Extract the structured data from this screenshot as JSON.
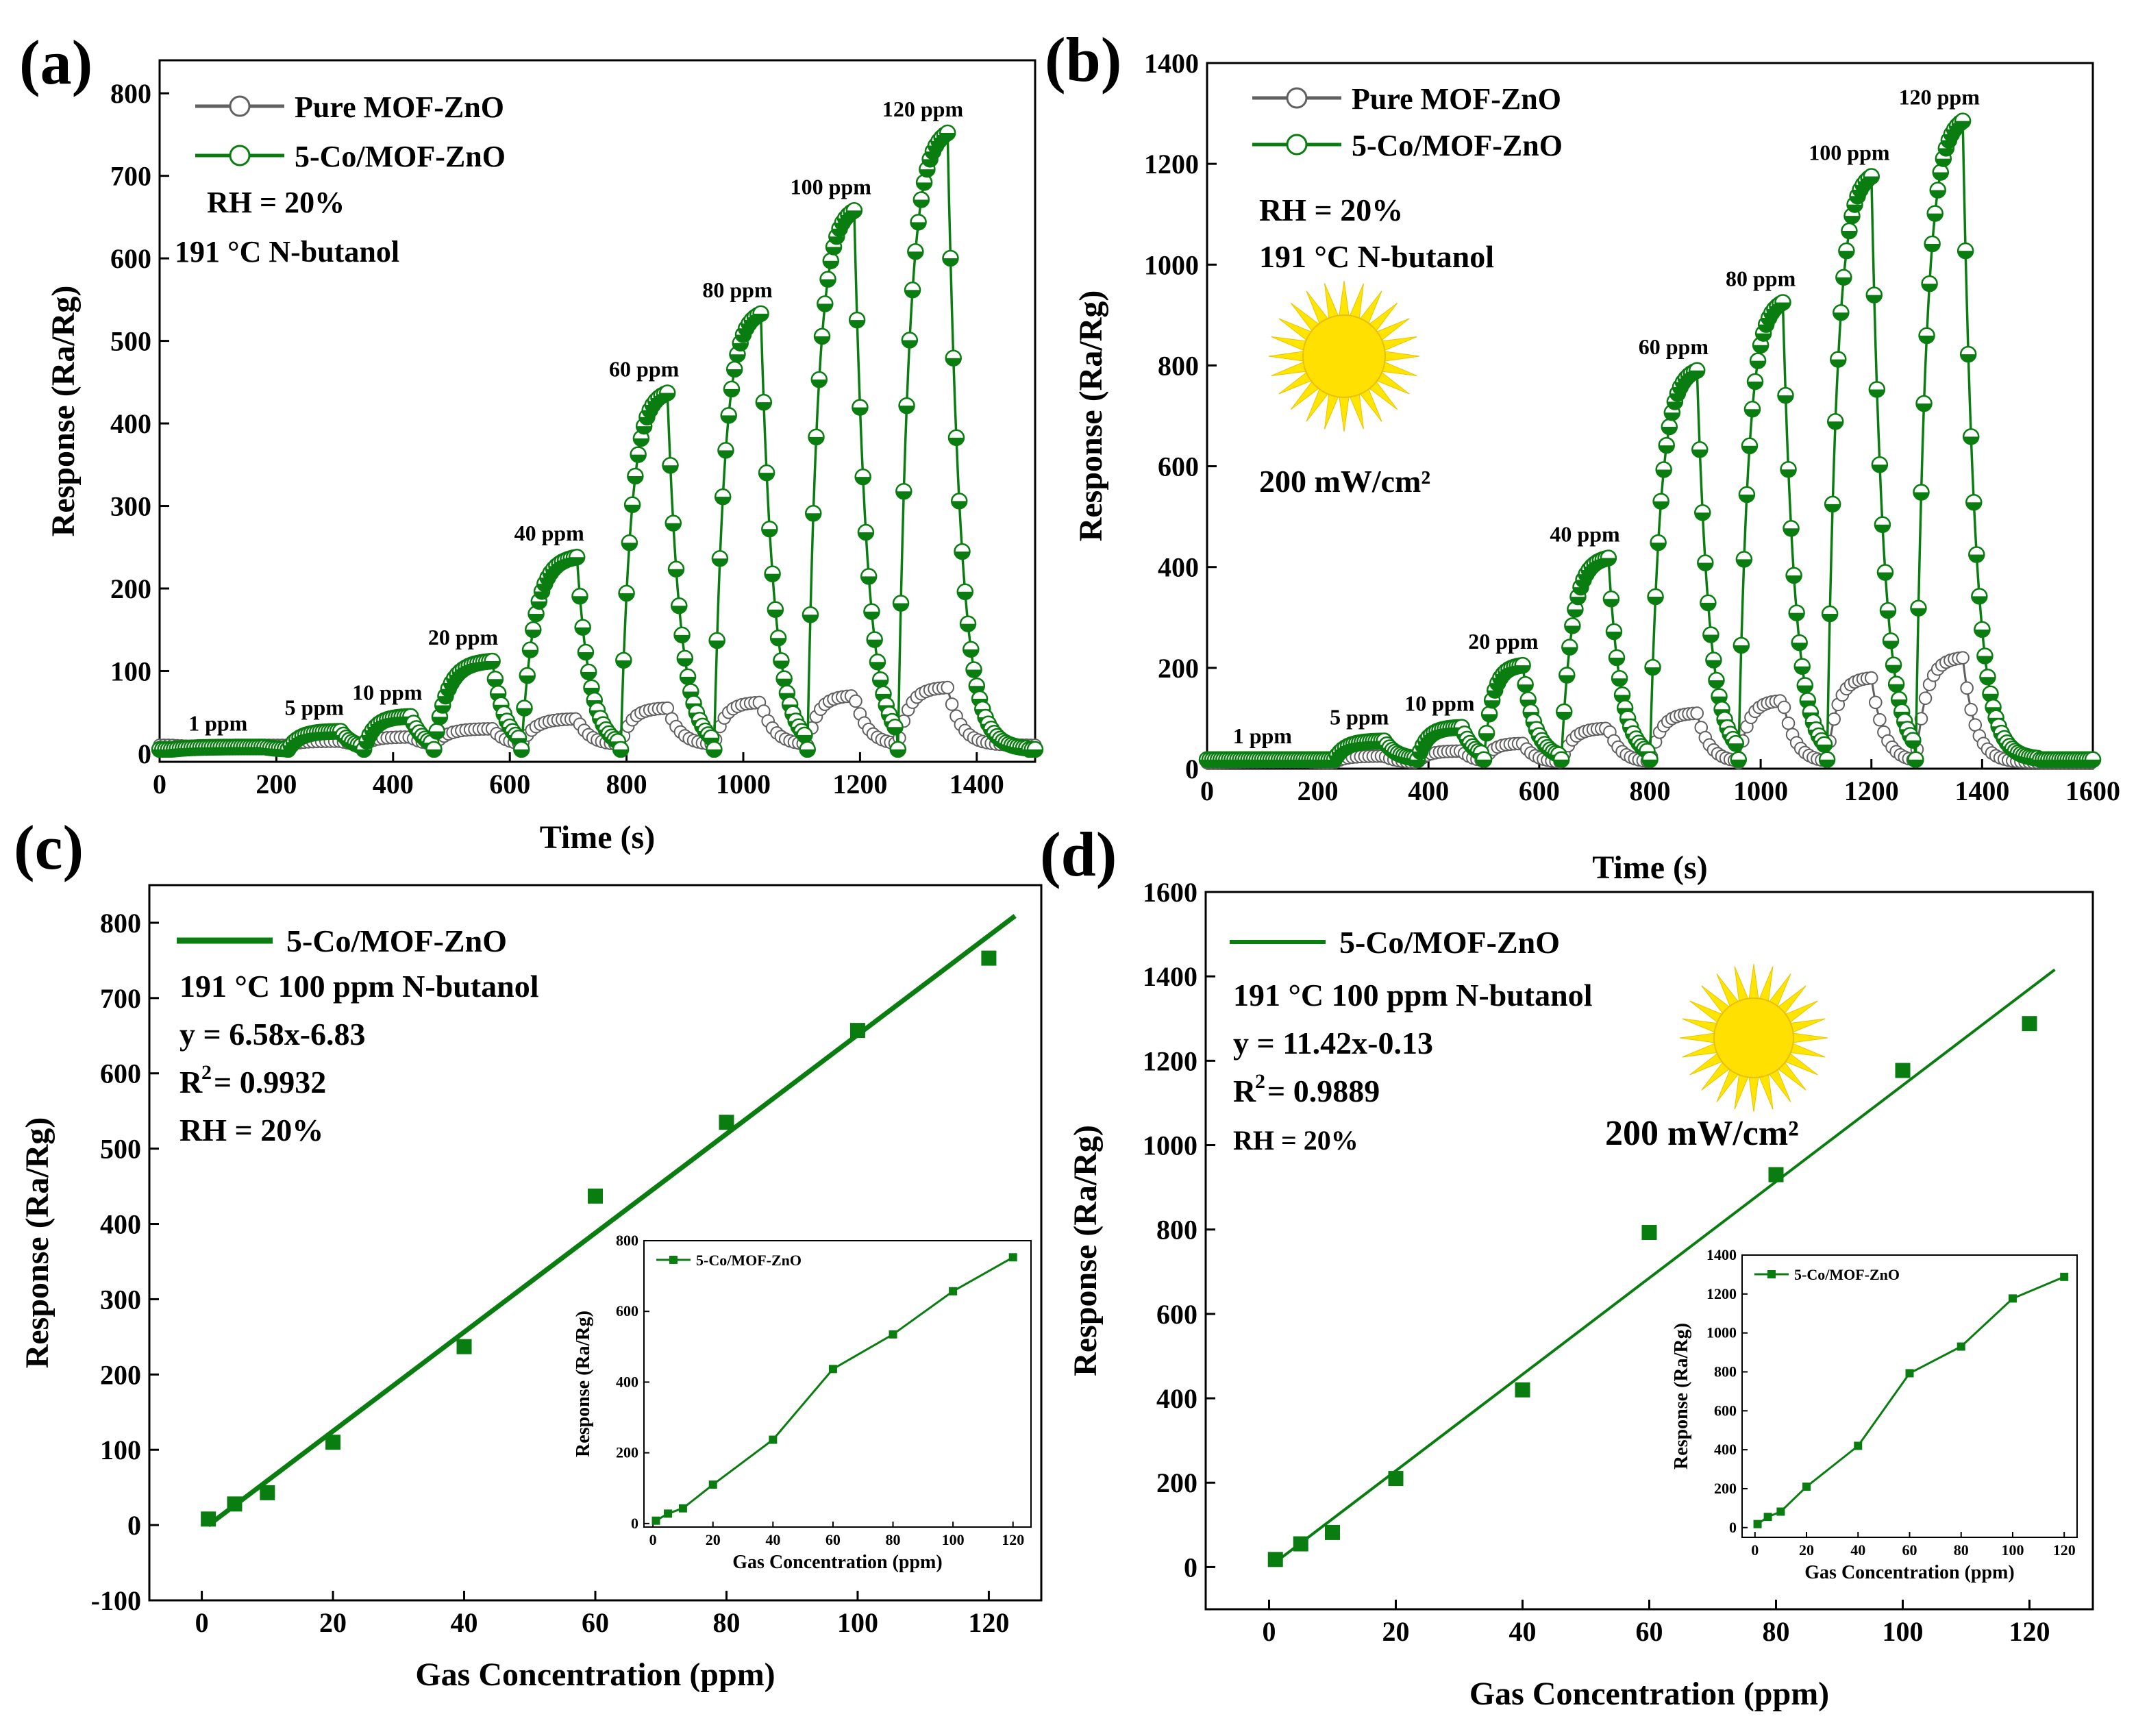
{
  "chart_data": [
    {
      "panel": "a",
      "panel_label": "(a)",
      "type": "line",
      "xlabel": "Time (s)",
      "ylabel": "Response (Ra/Rg)",
      "xlim": [
        0,
        1500
      ],
      "ylim": [
        -10,
        840
      ],
      "xticks": [
        0,
        200,
        400,
        600,
        800,
        1000,
        1200,
        1400
      ],
      "yticks": [
        0,
        100,
        200,
        300,
        400,
        500,
        600,
        700,
        800
      ],
      "legend": [
        "Pure MOF-ZnO",
        "5-Co/MOF-ZnO"
      ],
      "annotations": [
        "RH = 20%",
        "191 °C N-butanol"
      ],
      "baseline": {
        "pure": 10,
        "doped": 5
      },
      "pulses": [
        {
          "label": "1 ppm",
          "start": 20,
          "end": 180,
          "peak_doped": 8,
          "peak_pure": 8
        },
        {
          "label": "5 ppm",
          "start": 220,
          "end": 310,
          "peak_doped": 27,
          "peak_pure": 15
        },
        {
          "label": "10 ppm",
          "start": 350,
          "end": 430,
          "peak_doped": 45,
          "peak_pure": 20
        },
        {
          "label": "20 ppm",
          "start": 470,
          "end": 570,
          "peak_doped": 112,
          "peak_pure": 30
        },
        {
          "label": "40 ppm",
          "start": 620,
          "end": 715,
          "peak_doped": 238,
          "peak_pure": 42
        },
        {
          "label": "60 ppm",
          "start": 790,
          "end": 870,
          "peak_doped": 437,
          "peak_pure": 55
        },
        {
          "label": "80 ppm",
          "start": 950,
          "end": 1030,
          "peak_doped": 533,
          "peak_pure": 62
        },
        {
          "label": "100 ppm",
          "start": 1110,
          "end": 1190,
          "peak_doped": 658,
          "peak_pure": 70
        },
        {
          "label": "120 ppm",
          "start": 1265,
          "end": 1350,
          "peak_doped": 752,
          "peak_pure": 80
        }
      ]
    },
    {
      "panel": "b",
      "panel_label": "(b)",
      "type": "line",
      "xlabel": "Time (s)",
      "ylabel": "Response (Ra/Rg)",
      "xlim": [
        0,
        1600
      ],
      "ylim": [
        0,
        1400
      ],
      "xticks": [
        0,
        200,
        400,
        600,
        800,
        1000,
        1200,
        1400,
        1600
      ],
      "yticks": [
        0,
        200,
        400,
        600,
        800,
        1000,
        1200,
        1400
      ],
      "legend": [
        "Pure MOF-ZnO",
        "5-Co/MOF-ZnO"
      ],
      "annotations": [
        "RH = 20%",
        "191 °C N-butanol",
        "200 mW/cm²"
      ],
      "baseline": {
        "pure": 12,
        "doped": 18
      },
      "pulses": [
        {
          "label": "1 ppm",
          "start": 20,
          "end": 180,
          "peak_doped": 18,
          "peak_pure": 14
        },
        {
          "label": "5 ppm",
          "start": 230,
          "end": 320,
          "peak_doped": 55,
          "peak_pure": 25
        },
        {
          "label": "10 ppm",
          "start": 380,
          "end": 460,
          "peak_doped": 82,
          "peak_pure": 35
        },
        {
          "label": "20 ppm",
          "start": 500,
          "end": 570,
          "peak_doped": 205,
          "peak_pure": 50
        },
        {
          "label": "40 ppm",
          "start": 640,
          "end": 725,
          "peak_doped": 418,
          "peak_pure": 80
        },
        {
          "label": "60 ppm",
          "start": 800,
          "end": 885,
          "peak_doped": 790,
          "peak_pure": 110
        },
        {
          "label": "80 ppm",
          "start": 960,
          "end": 1040,
          "peak_doped": 925,
          "peak_pure": 135
        },
        {
          "label": "100 ppm",
          "start": 1120,
          "end": 1200,
          "peak_doped": 1175,
          "peak_pure": 180
        },
        {
          "label": "120 ppm",
          "start": 1280,
          "end": 1365,
          "peak_doped": 1285,
          "peak_pure": 220
        }
      ]
    },
    {
      "panel": "c",
      "panel_label": "(c)",
      "type": "scatter",
      "xlabel": "Gas Concentration (ppm)",
      "ylabel": "Response (Ra/Rg)",
      "xlim": [
        -8,
        128
      ],
      "ylim": [
        -100,
        850
      ],
      "xticks": [
        0,
        20,
        40,
        60,
        80,
        100,
        120
      ],
      "yticks": [
        -100,
        0,
        100,
        200,
        300,
        400,
        500,
        600,
        700,
        800
      ],
      "legend": [
        "5-Co/MOF-ZnO"
      ],
      "annotations": [
        "191 °C 100 ppm N-butanol",
        "y = 6.58x-6.83",
        "R",
        "2",
        " = 0.9932",
        "RH = 20%"
      ],
      "fit": {
        "slope": 6.58,
        "intercept": -6.83,
        "x_range": [
          1,
          120
        ]
      },
      "x": [
        1,
        5,
        10,
        20,
        40,
        60,
        80,
        100,
        120
      ],
      "y": [
        8,
        28,
        43,
        110,
        237,
        437,
        535,
        657,
        753
      ],
      "inset": {
        "legend": "5-Co/MOF-ZnO",
        "xlabel": "Gas Concentration (ppm)",
        "ylabel": "Response (Ra/Rg)",
        "xlim": [
          -3,
          126
        ],
        "ylim": [
          -10,
          800
        ],
        "xticks": [
          0,
          20,
          40,
          60,
          80,
          100,
          120
        ],
        "yticks": [
          0,
          200,
          400,
          600,
          800
        ]
      }
    },
    {
      "panel": "d",
      "panel_label": "(d)",
      "type": "scatter",
      "xlabel": "Gas Concentration (ppm)",
      "ylabel": "Response (Ra/Rg)",
      "xlim": [
        -10,
        130
      ],
      "ylim": [
        -100,
        1600
      ],
      "xticks": [
        0,
        20,
        40,
        60,
        80,
        100,
        120
      ],
      "yticks": [
        0,
        200,
        400,
        600,
        800,
        1000,
        1200,
        1400,
        1600
      ],
      "legend": [
        "5-Co/MOF-ZnO"
      ],
      "annotations": [
        "191 °C 100 ppm N-butanol",
        "y = 11.42x-0.13",
        "R",
        "2",
        " = 0.9889",
        "RH = 20%",
        "200 mW/cm²"
      ],
      "fit": {
        "slope": 11.42,
        "intercept": -0.13,
        "x_range": [
          1,
          120
        ]
      },
      "x": [
        1,
        5,
        10,
        20,
        40,
        60,
        80,
        100,
        120
      ],
      "y": [
        18,
        55,
        82,
        210,
        420,
        793,
        930,
        1177,
        1288
      ],
      "inset": {
        "legend": "5-Co/MOF-ZnO",
        "xlabel": "Gas Concentration (ppm)",
        "ylabel": "Response (Ra/Rg)",
        "xlim": [
          -5,
          125
        ],
        "ylim": [
          -50,
          1400
        ],
        "xticks": [
          0,
          20,
          40,
          60,
          80,
          100,
          120
        ],
        "yticks": [
          0,
          200,
          400,
          600,
          800,
          1000,
          1200,
          1400
        ]
      }
    }
  ]
}
